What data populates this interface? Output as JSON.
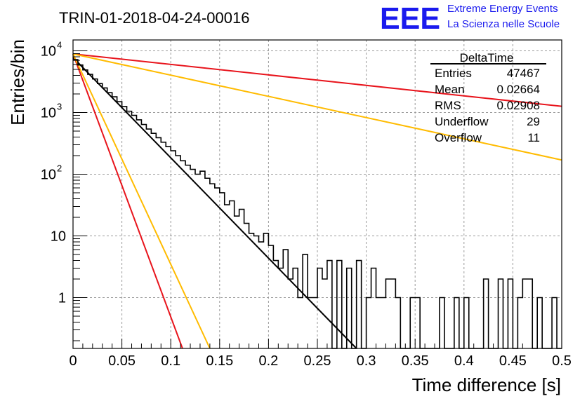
{
  "header": {
    "title": "TRIN-01-2018-04-24-00016",
    "logo_text": "EEE",
    "logo_line1": "Extreme Energy Events",
    "logo_line2": "La Scienza nelle Scuole"
  },
  "stats_box": {
    "name": "DeltaTime",
    "rows": [
      {
        "label": "Entries",
        "value": "47467"
      },
      {
        "label": "Mean",
        "value": "0.02664"
      },
      {
        "label": "RMS",
        "value": "0.02908"
      },
      {
        "label": "Underflow",
        "value": "29"
      },
      {
        "label": "Overflow",
        "value": "11"
      }
    ]
  },
  "chart_data": {
    "type": "line",
    "title": "TRIN-01-2018-04-24-00016",
    "xlabel": "Time difference [s]",
    "ylabel": "Entries/bin",
    "xlim": [
      0,
      0.5
    ],
    "ylim": [
      0.15,
      15000
    ],
    "y_scale": "log",
    "grid": true,
    "x_ticks": [
      "0",
      "0.05",
      "0.1",
      "0.15",
      "0.2",
      "0.25",
      "0.3",
      "0.35",
      "0.4",
      "0.45",
      "0.5"
    ],
    "y_ticks": [
      {
        "value": 1,
        "label": "1"
      },
      {
        "value": 10,
        "label": "10"
      },
      {
        "value": 100,
        "label": "10",
        "sup": "2"
      },
      {
        "value": 1000,
        "label": "10",
        "sup": "3"
      },
      {
        "value": 10000,
        "label": "10",
        "sup": "4"
      }
    ],
    "histogram": {
      "bin_width": 0.005,
      "values": [
        7200,
        5900,
        4900,
        4150,
        3500,
        2950,
        2500,
        2100,
        1800,
        1500,
        1250,
        1050,
        900,
        760,
        640,
        540,
        460,
        390,
        330,
        280,
        240,
        200,
        165,
        140,
        120,
        100,
        112,
        86,
        70,
        60,
        50,
        32,
        37,
        21,
        27,
        16,
        11,
        10,
        8,
        11,
        7,
        4,
        3,
        6,
        2,
        3,
        1,
        5,
        1,
        1,
        3,
        2,
        4,
        0,
        4,
        0,
        3,
        0,
        4,
        0,
        1,
        3,
        1,
        1,
        2,
        2,
        1,
        0,
        0,
        1,
        1,
        0,
        0,
        0,
        0,
        1,
        0,
        0,
        1,
        0,
        1,
        0,
        0,
        0,
        2,
        0,
        0,
        2,
        0,
        2,
        0,
        1,
        2,
        2,
        0,
        1,
        0,
        0,
        1,
        0
      ]
    },
    "series": [
      {
        "color": "#000000",
        "x": [
          0,
          0.29
        ],
        "y": [
          7800,
          0.15
        ]
      },
      {
        "color": "#e8141c",
        "x": [
          0,
          0.5
        ],
        "y": [
          8900,
          1260
        ]
      },
      {
        "color": "#e8141c",
        "x": [
          0,
          0.112
        ],
        "y": [
          8900,
          0.15
        ]
      },
      {
        "color": "#ffbb00",
        "x": [
          0,
          0.5
        ],
        "y": [
          8900,
          170
        ]
      },
      {
        "color": "#ffbb00",
        "x": [
          0,
          0.14
        ],
        "y": [
          8900,
          0.15
        ]
      }
    ]
  }
}
